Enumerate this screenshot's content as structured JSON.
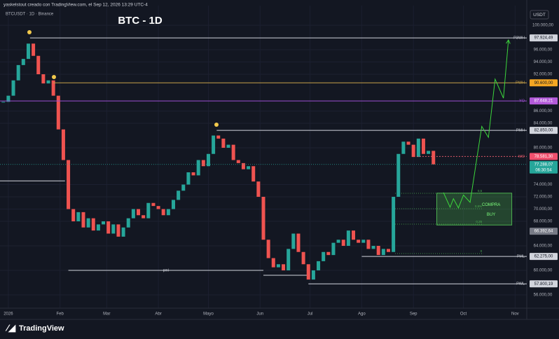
{
  "header": {
    "credit": "yaskelstout creado con TradingView.com, el Sep 12, 2026 13:29 UTC-4",
    "symbol": "BTCUSDT · 1D · Binance",
    "currency": "USDT",
    "brand": "TradingView"
  },
  "chart_data": {
    "type": "candlestick",
    "title": "BTC - 1D",
    "up_color": "#26a69a",
    "down_color": "#ef5350",
    "x": [
      -3,
      0,
      3,
      6,
      9,
      12,
      15,
      18,
      21,
      24,
      27,
      30,
      33,
      36,
      39,
      42,
      45,
      48,
      51,
      54,
      57,
      60,
      63,
      66,
      69,
      72,
      75,
      78,
      81,
      84,
      87,
      90,
      93,
      96,
      99,
      102,
      105,
      108,
      111,
      114,
      117,
      120,
      123,
      126,
      129,
      132,
      135,
      138,
      141,
      144,
      147,
      150,
      153,
      156,
      159,
      162,
      165,
      168,
      171,
      174,
      177,
      180,
      183,
      186,
      189,
      192,
      195,
      198,
      201,
      204,
      207,
      210,
      213,
      216,
      219,
      222,
      225,
      228,
      231,
      234,
      237,
      240,
      243,
      246,
      249,
      252,
      255
    ],
    "values": [
      87500,
      88500,
      91000,
      93500,
      94500,
      97000,
      95000,
      92000,
      90500,
      91000,
      88500,
      83000,
      78000,
      70000,
      68000,
      69500,
      67000,
      68500,
      66500,
      67500,
      68000,
      66000,
      67500,
      65500,
      67000,
      68500,
      70000,
      69000,
      68500,
      71000,
      70500,
      70000,
      69000,
      70000,
      71500,
      73000,
      74000,
      76000,
      75500,
      78000,
      77000,
      79000,
      82000,
      81500,
      80000,
      80500,
      78000,
      77500,
      76500,
      77000,
      74500,
      72000,
      65000,
      62000,
      60500,
      61000,
      60000,
      63500,
      66000,
      63000,
      61000,
      58500,
      60000,
      61500,
      63000,
      62500,
      64500,
      65000,
      64000,
      66500,
      65000,
      64500,
      65000,
      63500,
      64000,
      62500,
      63500,
      63000,
      72000,
      79000,
      81000,
      80500,
      78500,
      81500,
      79000,
      79500,
      77300
    ],
    "xlim": [
      -5,
      311
    ],
    "ylim": [
      53830,
      103200
    ],
    "xticks": [
      {
        "value": 0,
        "label": "2026"
      },
      {
        "value": 31,
        "label": "Feb"
      },
      {
        "value": 59,
        "label": "Mar"
      },
      {
        "value": 90,
        "label": "Abr"
      },
      {
        "value": 120,
        "label": "Mayo"
      },
      {
        "value": 151,
        "label": "Jun"
      },
      {
        "value": 181,
        "label": "Jul"
      },
      {
        "value": 212,
        "label": "Ago"
      },
      {
        "value": 243,
        "label": "Sep"
      },
      {
        "value": 273,
        "label": "Oct"
      },
      {
        "value": 304,
        "label": "Nov"
      }
    ],
    "yticks": [
      {
        "value": 100000,
        "label": "100.000,00"
      },
      {
        "value": 96000,
        "label": "96.000,00"
      },
      {
        "value": 94000,
        "label": "94.000,00"
      },
      {
        "value": 92000,
        "label": "92.000,00"
      },
      {
        "value": 86000,
        "label": "86.000,00"
      },
      {
        "value": 84000,
        "label": "84.000,00"
      },
      {
        "value": 80000,
        "label": "80.000,00"
      },
      {
        "value": 74000,
        "label": "74.000,00"
      },
      {
        "value": 72000,
        "label": "72.000,00"
      },
      {
        "value": 70000,
        "label": "70.000,00"
      },
      {
        "value": 68000,
        "label": "68.000,00"
      },
      {
        "value": 64000,
        "label": "64.000,00"
      },
      {
        "value": 60000,
        "label": "60.000,00"
      },
      {
        "value": 56000,
        "label": "56.000,00"
      }
    ],
    "grid": true,
    "levels": [
      {
        "name": "P3WH",
        "value": 97924.49,
        "label": "97.924,49",
        "start": 13,
        "color": "#d1d4dc",
        "tag_text": "#131722"
      },
      {
        "name": "PWH",
        "value": 90600,
        "label": "90.600,00",
        "start": 27,
        "color": "#c8a24a",
        "tag_color": "#f5a623",
        "tag_text": "#131722"
      },
      {
        "name": "YO",
        "value": 87648.21,
        "label": "87.648,21",
        "start": -5,
        "color": "#9c4fd1",
        "tag_color": "#b35ad9",
        "tag_text": "#ffffff"
      },
      {
        "name": "PMH",
        "value": 82850,
        "label": "82.850,00",
        "start": 125,
        "color": "#d1d4dc",
        "tag_text": "#131722"
      },
      {
        "name": "MO",
        "value": 78581.3,
        "label": "78.581,30",
        "start": 245,
        "color": "#e05a6a",
        "tag_color": "#f0506e",
        "tag_text": "#ffffff",
        "dashed": true
      },
      {
        "name": "PML",
        "value": 62275,
        "label": "62.275,00",
        "start": 212,
        "color": "#d1d4dc",
        "tag_text": "#131722"
      },
      {
        "name": "PWL",
        "value": 57800.19,
        "label": "57.800,19",
        "start": 180,
        "color": "#d1d4dc",
        "tag_text": "#131722"
      }
    ],
    "lines": [
      {
        "value": 74600,
        "start": -5,
        "end": 34
      },
      {
        "value": 60000,
        "start": 36,
        "end": 153,
        "text": "pml"
      },
      {
        "value": 59200,
        "start": 153,
        "end": 180
      }
    ],
    "current": {
      "value": 77288.07,
      "label": "77.288,07",
      "countdown": "06:30:54",
      "color": "#26a69a"
    },
    "last_tag": {
      "value": 66392.64,
      "label": "66.392,64",
      "color": "#787b86"
    },
    "fib": {
      "labels": [
        "0,5",
        "0,5%",
        "0,25",
        "0"
      ],
      "values": [
        72571,
        70057,
        67543,
        62743
      ],
      "start": 232,
      "end": 285,
      "color": "#4caf50"
    },
    "zone": {
      "x": [
        257,
        302
      ],
      "y": [
        67400,
        72600
      ],
      "labels": [
        "COMPRA",
        "BUY"
      ],
      "color": "#4caf50"
    },
    "projection": {
      "color": "#3cd63c",
      "x": [
        261,
        265,
        267,
        270,
        273,
        277,
        284,
        288,
        292,
        297,
        300
      ],
      "values": [
        72700,
        70300,
        71700,
        70200,
        72300,
        71100,
        83500,
        81700,
        91200,
        88100,
        97600
      ]
    }
  }
}
